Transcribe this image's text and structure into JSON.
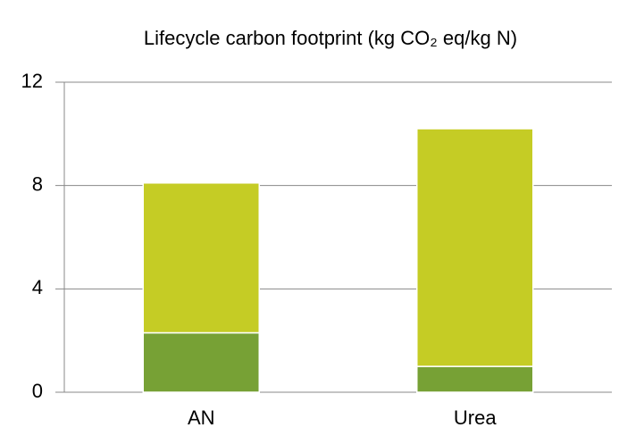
{
  "chart_data": {
    "type": "stacked_bar",
    "title": "Lifecycle carbon footprint (kg CO₂ eq/kg N)",
    "categories": [
      "AN",
      "Urea"
    ],
    "series": [
      {
        "color": "#77a135",
        "values": [
          2.3,
          1.0
        ]
      },
      {
        "color": "#c5cc25",
        "values": [
          5.8,
          9.2
        ]
      }
    ],
    "ylim": [
      0,
      12
    ],
    "yticks": [
      0,
      4,
      8,
      12
    ],
    "grid": true
  }
}
